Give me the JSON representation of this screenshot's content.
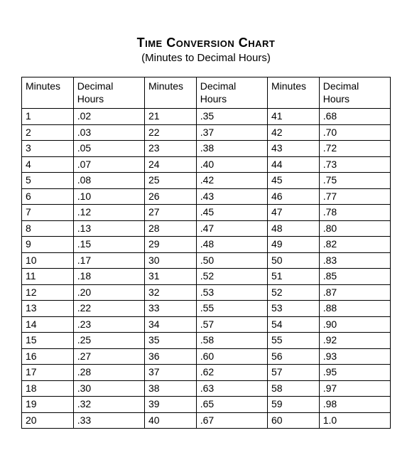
{
  "title": "Time Conversion Chart",
  "subtitle": "(Minutes to Decimal Hours)",
  "columns": [
    "Minutes",
    "Decimal Hours",
    "Minutes",
    "Decimal Hours",
    "Minutes",
    "Decimal Hours"
  ],
  "rows": [
    [
      "1",
      ".02",
      "21",
      ".35",
      "41",
      ".68"
    ],
    [
      "2",
      ".03",
      "22",
      ".37",
      "42",
      ".70"
    ],
    [
      "3",
      ".05",
      "23",
      ".38",
      "43",
      ".72"
    ],
    [
      "4",
      ".07",
      "24",
      ".40",
      "44",
      ".73"
    ],
    [
      "5",
      ".08",
      "25",
      ".42",
      "45",
      ".75"
    ],
    [
      "6",
      ".10",
      "26",
      ".43",
      "46",
      ".77"
    ],
    [
      "7",
      ".12",
      "27",
      ".45",
      "47",
      ".78"
    ],
    [
      "8",
      ".13",
      "28",
      ".47",
      "48",
      ".80"
    ],
    [
      "9",
      ".15",
      "29",
      ".48",
      "49",
      ".82"
    ],
    [
      "10",
      ".17",
      "30",
      ".50",
      "50",
      ".83"
    ],
    [
      "11",
      ".18",
      "31",
      ".52",
      "51",
      ".85"
    ],
    [
      "12",
      ".20",
      "32",
      ".53",
      "52",
      ".87"
    ],
    [
      "13",
      ".22",
      "33",
      ".55",
      "53",
      ".88"
    ],
    [
      "14",
      ".23",
      "34",
      ".57",
      "54",
      ".90"
    ],
    [
      "15",
      ".25",
      "35",
      ".58",
      "55",
      ".92"
    ],
    [
      "16",
      ".27",
      "36",
      ".60",
      "56",
      ".93"
    ],
    [
      "17",
      ".28",
      "37",
      ".62",
      "57",
      ".95"
    ],
    [
      "18",
      ".30",
      "38",
      ".63",
      "58",
      ".97"
    ],
    [
      "19",
      ".32",
      "39",
      ".65",
      "59",
      ".98"
    ],
    [
      "20",
      ".33",
      "40",
      ".67",
      "60",
      "1.0"
    ]
  ],
  "style": {
    "type": "table",
    "background_color": "#ffffff",
    "text_color": "#000000",
    "border_color": "#000000",
    "font_family": "Arial",
    "title_fontsize": 18,
    "subtitle_fontsize": 15,
    "cell_fontsize": 14,
    "col_widths_pct": [
      14,
      19.3,
      14,
      19.3,
      14,
      19.3
    ],
    "alignment": "left"
  }
}
